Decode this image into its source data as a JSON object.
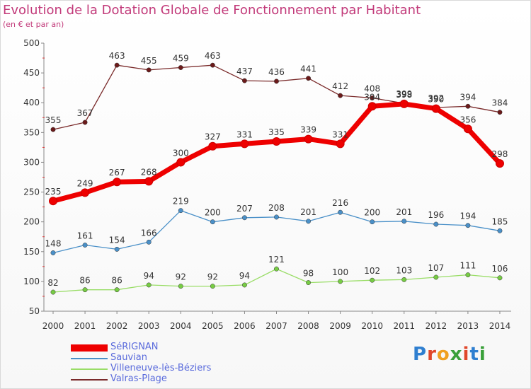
{
  "header": {
    "title": "Evolution de la Dotation Globale de Fonctionnement par Habitant",
    "subtitle": "(en € et par an)"
  },
  "logo": {
    "text": "Proxiti",
    "colors": [
      "#2f7fd0",
      "#e0472b",
      "#f0a020",
      "#3aa03a",
      "#e0472b",
      "#2f7fd0",
      "#3aa03a"
    ]
  },
  "chart_data": {
    "type": "line",
    "x": [
      "2000",
      "2001",
      "2002",
      "2003",
      "2004",
      "2005",
      "2006",
      "2007",
      "2008",
      "2009",
      "2010",
      "2011",
      "2012",
      "2013",
      "2014"
    ],
    "ylim": [
      50,
      500
    ],
    "yticks": [
      50,
      100,
      150,
      200,
      250,
      300,
      350,
      400,
      450,
      500
    ],
    "grid": false,
    "legend_position": "bottom-left",
    "series": [
      {
        "name": "SéRIGNAN",
        "color": "#ee0000",
        "marker_color": "#ee0000",
        "emphasis": true,
        "values": [
          235,
          249,
          267,
          268,
          300,
          327,
          331,
          335,
          339,
          331,
          394,
          398,
          390,
          356,
          298
        ]
      },
      {
        "name": "Sauvian",
        "color": "#4a90c8",
        "marker_color": "#4a90c8",
        "values": [
          148,
          161,
          154,
          166,
          219,
          200,
          207,
          208,
          201,
          216,
          200,
          201,
          196,
          194,
          185
        ]
      },
      {
        "name": "Villeneuve-lès-Béziers",
        "color": "#99dd66",
        "marker_color": "#77cc44",
        "values": [
          82,
          86,
          86,
          94,
          92,
          92,
          94,
          121,
          98,
          100,
          102,
          103,
          107,
          111,
          106
        ]
      },
      {
        "name": "Valras-Plage",
        "color": "#7a2a2a",
        "marker_color": "#6b1a1a",
        "values": [
          355,
          367,
          463,
          455,
          459,
          463,
          437,
          436,
          441,
          412,
          408,
          399,
          392,
          394,
          384
        ]
      }
    ]
  }
}
